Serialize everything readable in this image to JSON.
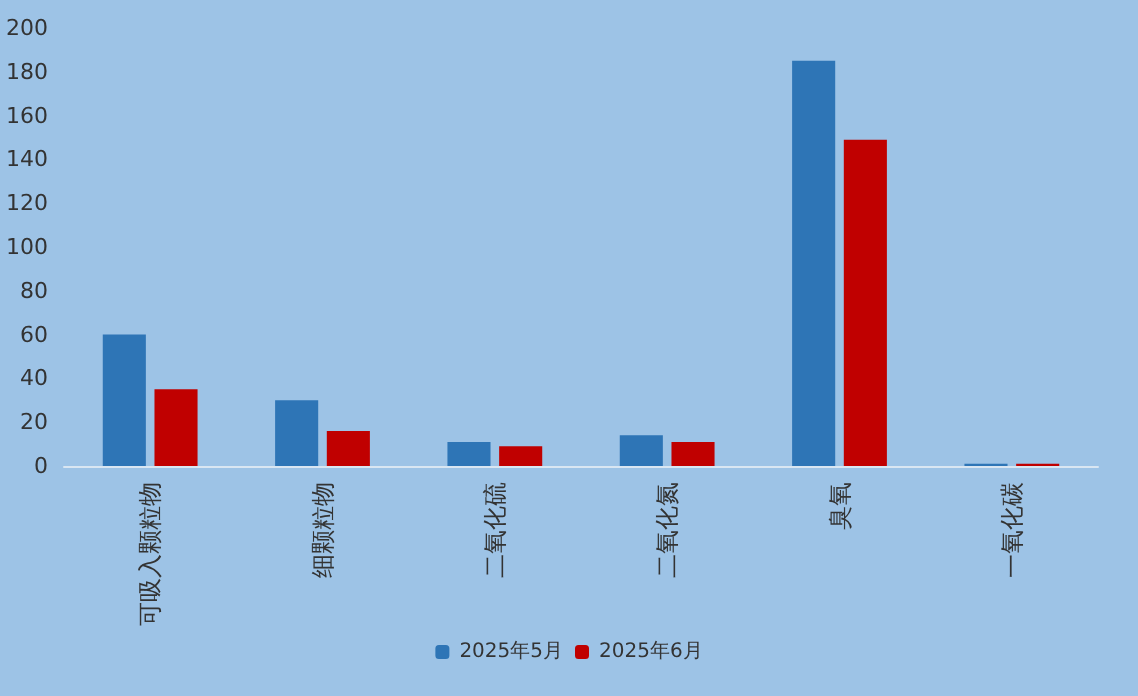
{
  "chart_data": {
    "type": "bar",
    "categories": [
      "可吸入颗粒物",
      "细颗粒物",
      "二氧化硫",
      "二氧化氮",
      "臭氧",
      "一氧化碳"
    ],
    "series": [
      {
        "name": "2025年5月",
        "color": "#2e75b6",
        "values": [
          60,
          30,
          11,
          14,
          185,
          1
        ]
      },
      {
        "name": "2025年6月",
        "color": "#c00000",
        "values": [
          35,
          16,
          9,
          11,
          149,
          1
        ]
      }
    ],
    "ylim": [
      0,
      200
    ],
    "yticks": [
      0,
      20,
      40,
      60,
      80,
      100,
      120,
      140,
      160,
      180,
      200
    ],
    "grid": false,
    "legend": "bottom"
  }
}
